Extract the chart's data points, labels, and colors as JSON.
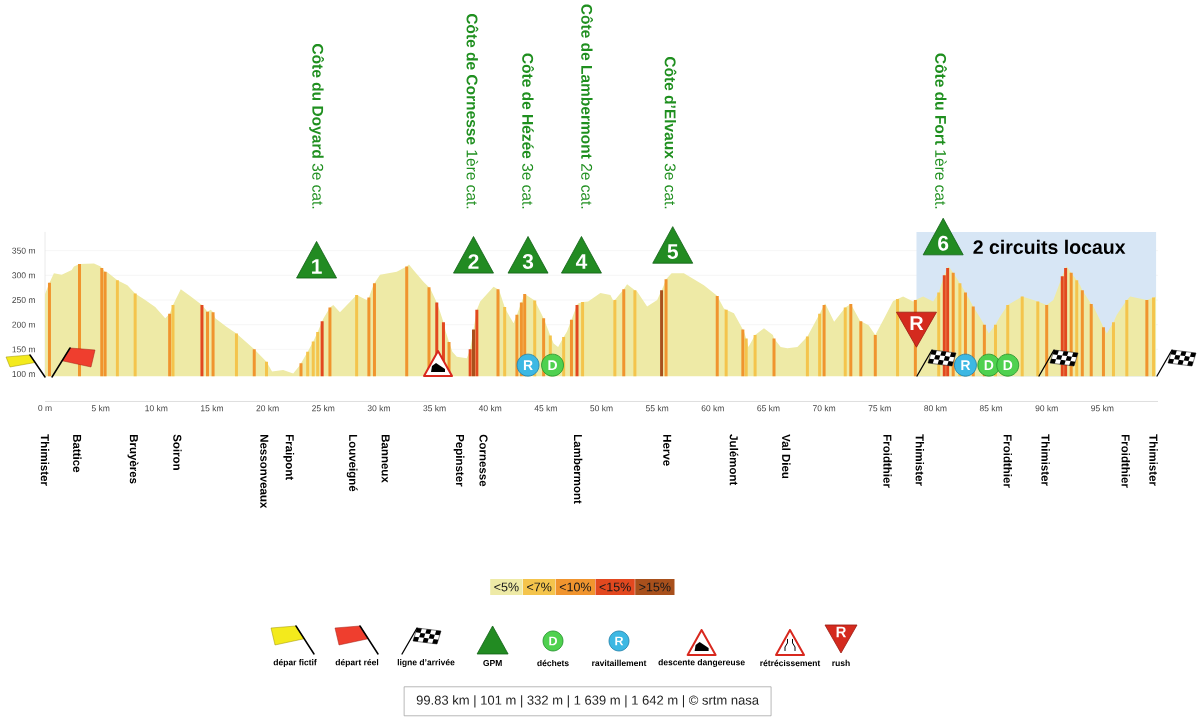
{
  "chart_data": {
    "type": "area",
    "xlim": [
      0,
      100
    ],
    "ylim": [
      95,
      388
    ],
    "xticks": [
      {
        "value": 0,
        "label": "0 m"
      },
      {
        "value": 5,
        "label": "5 km"
      },
      {
        "value": 10,
        "label": "10 km"
      },
      {
        "value": 15,
        "label": "15 km"
      },
      {
        "value": 20,
        "label": "20 km"
      },
      {
        "value": 25,
        "label": "25 km"
      },
      {
        "value": 30,
        "label": "30 km"
      },
      {
        "value": 35,
        "label": "35 km"
      },
      {
        "value": 40,
        "label": "40 km"
      },
      {
        "value": 45,
        "label": "45 km"
      },
      {
        "value": 50,
        "label": "50 km"
      },
      {
        "value": 55,
        "label": "55 km"
      },
      {
        "value": 60,
        "label": "60 km"
      },
      {
        "value": 65,
        "label": "65 km"
      },
      {
        "value": 70,
        "label": "70 km"
      },
      {
        "value": 75,
        "label": "75 km"
      },
      {
        "value": 80,
        "label": "80 km"
      },
      {
        "value": 85,
        "label": "85 km"
      },
      {
        "value": 90,
        "label": "90 km"
      },
      {
        "value": 95,
        "label": "95 km"
      }
    ],
    "yticks": [
      {
        "value": 100,
        "label": "100 m"
      },
      {
        "value": 150,
        "label": "150 m"
      },
      {
        "value": 200,
        "label": "200 m"
      },
      {
        "value": 250,
        "label": "250 m"
      },
      {
        "value": 300,
        "label": "300 m"
      },
      {
        "value": 350,
        "label": "350 m"
      }
    ],
    "grid": "y",
    "legend": "bottom",
    "series": [
      {
        "name": "<5%",
        "color": "#eeeaa6",
        "x": [
          0,
          0.4,
          0.8,
          1.5,
          2.4,
          2.6,
          3.1,
          4.4,
          5.0,
          5.1,
          5.4,
          5.6,
          6.5,
          7.4,
          8.1,
          9.0,
          9.9,
          10.8,
          11.2,
          11.5,
          12.2,
          13.1,
          14.1,
          14.6,
          14.9,
          15.1,
          15.3,
          16.3,
          17.2,
          18.7,
          18.8,
          19.9,
          20.4,
          21.4,
          22.3,
          22.9,
          23.0,
          23.6,
          24.1,
          24.5,
          24.9,
          25.0,
          25.6,
          25.9,
          26.5,
          28.0,
          28.9,
          29.1,
          29.5,
          29.6,
          30.1,
          31.6,
          32.5,
          32.7,
          33.1,
          34.0,
          34.5,
          34.6,
          35.2,
          35.4,
          35.8,
          36.0,
          36.3,
          36.6,
          37.0,
          37.9,
          38.2,
          38.5,
          38.8,
          39.1,
          40.3,
          40.7,
          40.8,
          41.3,
          41.5,
          42.1,
          42.4,
          42.8,
          43.1,
          44.0,
          44.8,
          45.4,
          45.7,
          46.1,
          46.6,
          46.9,
          47.3,
          47.8,
          47.9,
          48.3,
          48.8,
          49.9,
          50.8,
          51.1,
          51.2,
          52.0,
          52.3,
          53.0,
          53.2,
          54.1,
          55.0,
          55.4,
          55.6,
          55.8,
          56.3,
          57.4,
          59.2,
          60.3,
          60.4,
          61.0,
          61.2,
          61.9,
          62.7,
          62.8,
          63.0,
          63.2,
          63.8,
          64.6,
          65.4,
          65.5,
          66.1,
          66.7,
          67.6,
          68.5,
          69.6,
          70.0,
          70.1,
          70.9,
          71.9,
          72.4,
          73.2,
          73.3,
          74.0,
          74.6,
          75.4,
          76.2,
          76.6,
          77.1,
          78.0,
          78.2,
          78.9,
          79.8,
          80.3,
          80.8,
          81.1,
          81.2,
          81.6,
          82.2,
          82.7,
          83.4,
          84.4,
          84.8,
          85.4,
          85.8,
          86.5,
          87.8,
          88.8,
          89.2,
          90.0,
          90.6,
          91.4,
          91.7,
          91.8,
          92.2,
          92.7,
          93.0,
          93.2,
          94.0,
          94.2,
          95.1,
          95.4,
          96.0,
          96.3,
          97.2,
          97.5,
          99.0,
          99.6,
          99.83
        ],
        "values": [
          262,
          285,
          304,
          301,
          311,
          318,
          323,
          324,
          318,
          315,
          307,
          306,
          290,
          280,
          263,
          250,
          236,
          213,
          222,
          240,
          272,
          257,
          240,
          226,
          230,
          225,
          213,
          196,
          182,
          152,
          150,
          125,
          105,
          108,
          101,
          118,
          122,
          145,
          166,
          185,
          207,
          212,
          235,
          240,
          225,
          260,
          250,
          255,
          280,
          284,
          301,
          307,
          318,
          322,
          311,
          287,
          276,
          274,
          245,
          233,
          205,
          186,
          165,
          145,
          135,
          132,
          150,
          190,
          230,
          247,
          277,
          272,
          270,
          236,
          226,
          203,
          220,
          245,
          262,
          249,
          213,
          178,
          162,
          155,
          175,
          186,
          210,
          240,
          243,
          246,
          247,
          264,
          260,
          247,
          250,
          272,
          282,
          270,
          267,
          237,
          250,
          270,
          280,
          292,
          304,
          304,
          280,
          260,
          258,
          233,
          230,
          223,
          190,
          186,
          172,
          155,
          179,
          193,
          179,
          172,
          155,
          152,
          155,
          176,
          222,
          240,
          243,
          206,
          235,
          242,
          209,
          207,
          199,
          179,
          213,
          248,
          252,
          257,
          247,
          250,
          257,
          247,
          265,
          300,
          315,
          318,
          305,
          284,
          265,
          237,
          200,
          182,
          200,
          216,
          240,
          257,
          250,
          247,
          240,
          250,
          298,
          315,
          318,
          305,
          290,
          280,
          270,
          242,
          237,
          195,
          182,
          205,
          220,
          250,
          257,
          250,
          255,
          257
        ]
      },
      {
        "name": "<7%",
        "type": "bar",
        "color": "#f4c44c",
        "x": [
          6.5,
          8.1,
          11.5,
          17.2,
          19.9,
          23.6,
          24.1,
          24.5,
          28.0,
          41.3,
          44.0,
          45.4,
          46.6,
          48.3,
          51.2,
          53.0,
          61.2,
          63.0,
          63.8,
          68.5,
          69.6,
          71.9,
          76.6,
          80.3,
          82.2,
          85.4,
          86.5,
          87.8,
          89.2,
          92.7,
          96.0,
          97.2,
          99.6
        ],
        "values": [
          290,
          263,
          240,
          182,
          125,
          145,
          166,
          185,
          260,
          236,
          249,
          178,
          175,
          246,
          250,
          270,
          230,
          172,
          179,
          176,
          222,
          235,
          252,
          265,
          284,
          200,
          240,
          257,
          247,
          290,
          205,
          250,
          255
        ]
      },
      {
        "name": "<10%",
        "type": "bar",
        "color": "#f0942e",
        "x": [
          0.4,
          3.1,
          5.1,
          5.4,
          11.2,
          14.6,
          15.1,
          18.8,
          23.0,
          25.6,
          29.1,
          29.6,
          32.5,
          34.5,
          36.3,
          40.7,
          42.4,
          42.8,
          43.1,
          44.8,
          47.3,
          52.0,
          55.8,
          60.4,
          62.7,
          65.5,
          70.0,
          72.4,
          73.3,
          74.6,
          78.2,
          81.6,
          82.7,
          83.4,
          84.4,
          90.0,
          92.2,
          93.2,
          94.0,
          95.1,
          99.0
        ],
        "values": [
          285,
          323,
          315,
          307,
          222,
          226,
          225,
          150,
          122,
          235,
          255,
          284,
          318,
          276,
          165,
          272,
          220,
          245,
          262,
          213,
          210,
          272,
          292,
          258,
          190,
          172,
          240,
          242,
          207,
          179,
          250,
          305,
          265,
          237,
          200,
          240,
          305,
          270,
          242,
          195,
          250
        ]
      },
      {
        "name": "<15%",
        "type": "bar",
        "color": "#e2481f",
        "x": [
          14.1,
          24.9,
          35.2,
          35.8,
          38.2,
          38.8,
          47.8,
          80.8,
          81.1,
          91.4,
          91.7
        ],
        "values": [
          240,
          207,
          245,
          205,
          150,
          230,
          240,
          300,
          315,
          298,
          315
        ]
      },
      {
        "name": ">15%",
        "type": "bar",
        "color": "#a8501c",
        "x": [
          38.5,
          55.4
        ],
        "values": [
          190,
          270
        ]
      }
    ],
    "bands": [
      {
        "axis": "x",
        "from": 78.3,
        "to": 99.83,
        "label": "2 circuits locaux",
        "color": "#d7e6f5"
      }
    ],
    "annotations": [
      "**Côte du Doyard** 3e cat.",
      "**Côte de Cornesse** 1ère cat.",
      "**Côte de Hézée** 3e cat.",
      "**Côte de Lambermont** 2e cat.",
      "**Côte d’Elvaux** 3e cat.",
      "**Côte du Fort** 1ère cat.",
      "1",
      "2",
      "3",
      "4",
      "5",
      "6",
      {
        "text": "R",
        "x": 43.4,
        "y": 118
      },
      {
        "text": "D",
        "x": 45.6,
        "y": 118
      },
      {
        "text": "R",
        "x": 82.7,
        "y": 118
      },
      {
        "text": "D",
        "x": 84.8,
        "y": 118
      },
      {
        "text": "D",
        "x": 86.5,
        "y": 118
      },
      {
        "text": "R",
        "x": 78.3,
        "y": 203
      },
      "Thimister",
      "Battice",
      "Bruyères",
      "Soiron",
      "Nessonveaux",
      "Fraipont",
      "Louveigné",
      "Banneux",
      "Pepinster",
      "Cornesse",
      "Lambermont",
      "Herve",
      "Julémont",
      "Val Dieu",
      "Froidthier",
      "Thimister",
      "Froidthier",
      "Thimister",
      "Froidthier",
      "Thimister",
      "dépar fictif",
      "départ réel",
      "ligne d’arrivée",
      "GPM",
      "déchets",
      "ravitaillement",
      "descente dangereuse",
      "rétrécissement",
      "rush",
      "D",
      "R",
      "R",
      "99.83 km | 101 m | 332 m | 1 639 m | 1 642 m | © srtm nasa"
    ]
  }
}
